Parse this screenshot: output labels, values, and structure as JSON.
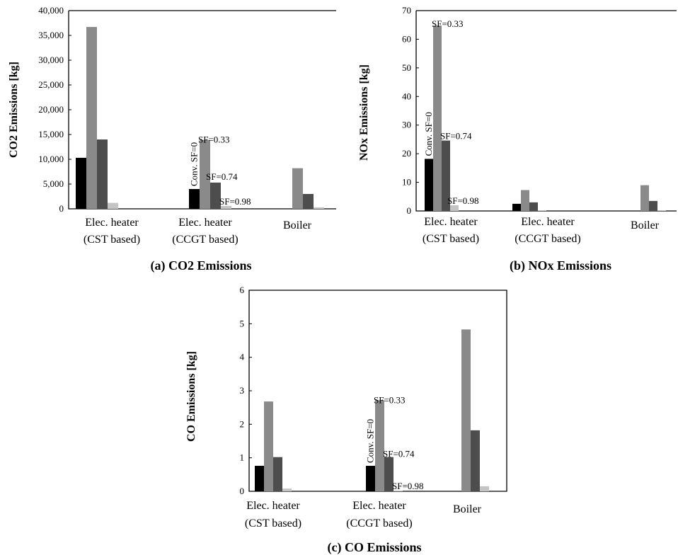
{
  "chart_data": [
    {
      "type": "bar",
      "caption": "(a) CO2 Emissions",
      "ylabel": "CO2 Emissions [kg]",
      "ylim": [
        0,
        40000
      ],
      "yticks": [
        "0",
        "5,000",
        "10,000",
        "15,000",
        "20,000",
        "25,000",
        "30,000",
        "35,000",
        "40,000"
      ],
      "categories": [
        "Elec. heater\n(CST based)",
        "Elec. heater\n(CCGT based)",
        "Boiler"
      ],
      "series": [
        {
          "values": [
            10300,
            4000,
            0
          ],
          "color": "#000000"
        },
        {
          "values": [
            36700,
            13900,
            8200
          ],
          "color": "#8a8a8a"
        },
        {
          "values": [
            14000,
            5300,
            3000
          ],
          "color": "#4d4d4d"
        },
        {
          "values": [
            1200,
            600,
            300
          ],
          "color": "#c4c4c4"
        }
      ],
      "annotations": [
        {
          "text": "Conv. SF=0",
          "category": 1,
          "series": 0
        },
        {
          "text": "SF=0.33",
          "category": 1,
          "series": 1
        },
        {
          "text": "SF=0.74",
          "category": 1,
          "series": 2
        },
        {
          "text": "SF=0.98",
          "category": 1,
          "series": 3
        }
      ]
    },
    {
      "type": "bar",
      "caption": "(b) NOx Emissions",
      "ylabel": "NOx Emissions [kg]",
      "ylim": [
        0,
        70
      ],
      "yticks": [
        "0",
        "10",
        "20",
        "30",
        "40",
        "50",
        "60",
        "70"
      ],
      "categories": [
        "Elec. heater\n(CST based)",
        "Elec. heater\n(CCGT based)",
        "Boiler"
      ],
      "series": [
        {
          "values": [
            18.2,
            2.5,
            0
          ],
          "color": "#000000"
        },
        {
          "values": [
            64.8,
            7.3,
            9.0
          ],
          "color": "#8a8a8a"
        },
        {
          "values": [
            24.6,
            3.0,
            3.5
          ],
          "color": "#4d4d4d"
        },
        {
          "values": [
            2.0,
            0.2,
            0.2
          ],
          "color": "#c4c4c4"
        }
      ],
      "annotations": [
        {
          "text": "Conv. SF=0",
          "category": 0,
          "series": 0
        },
        {
          "text": "SF=0.33",
          "category": 0,
          "series": 1
        },
        {
          "text": "SF=0.74",
          "category": 0,
          "series": 2
        },
        {
          "text": "SF=0.98",
          "category": 0,
          "series": 3
        }
      ]
    },
    {
      "type": "bar",
      "caption": "(c) CO Emissions",
      "ylabel": "CO Emissions [kg]",
      "ylim": [
        0,
        6
      ],
      "yticks": [
        "0",
        "1",
        "2",
        "3",
        "4",
        "5",
        "6"
      ],
      "categories": [
        "Elec. heater\n(CST based)",
        "Elec. heater\n(CCGT based)",
        "Boiler"
      ],
      "series": [
        {
          "values": [
            0.76,
            0.76,
            0
          ],
          "color": "#000000"
        },
        {
          "values": [
            2.68,
            2.72,
            4.83
          ],
          "color": "#8a8a8a"
        },
        {
          "values": [
            1.02,
            1.02,
            1.82
          ],
          "color": "#4d4d4d"
        },
        {
          "values": [
            0.08,
            0.02,
            0.15
          ],
          "color": "#c4c4c4"
        }
      ],
      "annotations": [
        {
          "text": "Conv. SF=0",
          "category": 1,
          "series": 0
        },
        {
          "text": "SF=0.33",
          "category": 1,
          "series": 1
        },
        {
          "text": "SF=0.74",
          "category": 1,
          "series": 2
        },
        {
          "text": "SF=0.98",
          "category": 1,
          "series": 3
        }
      ]
    }
  ]
}
